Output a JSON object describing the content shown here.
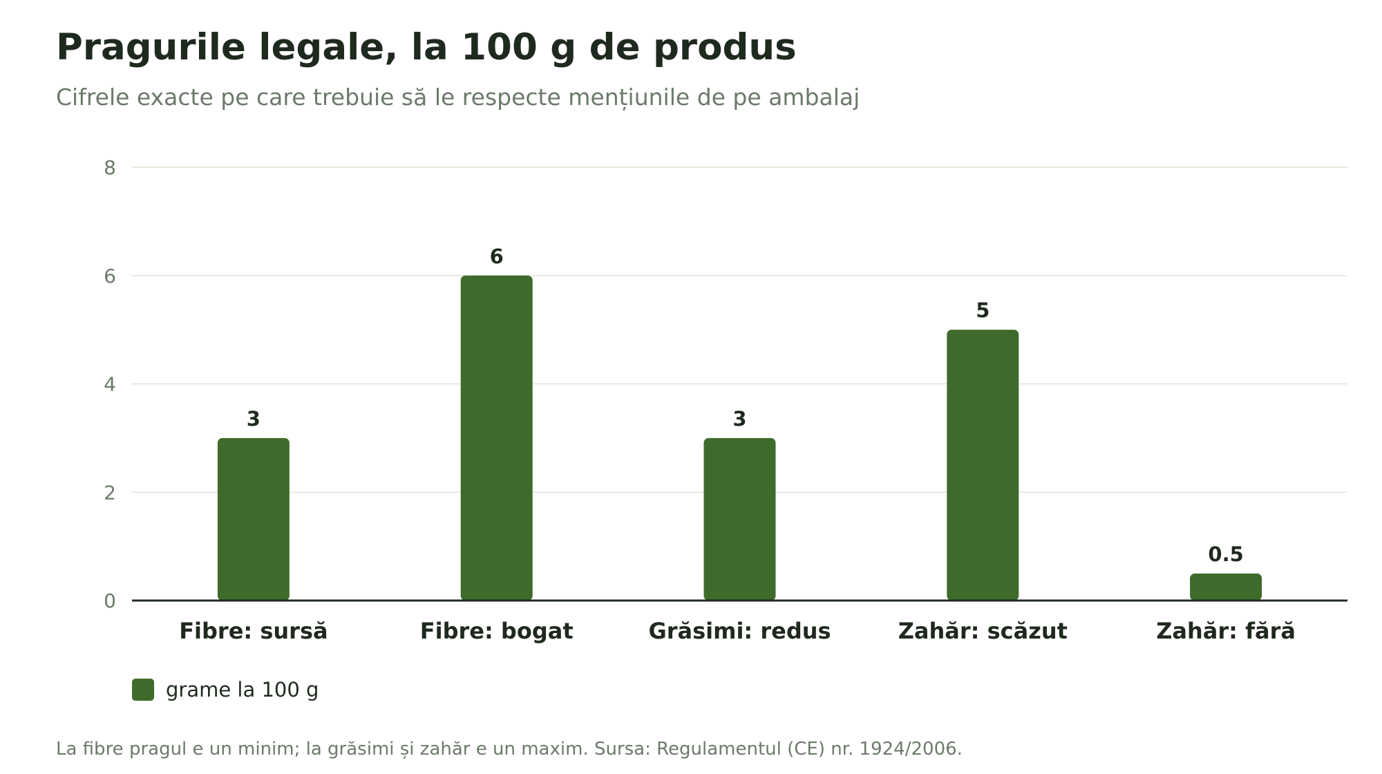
{
  "title": "Pragurile legale, la 100 g de produs",
  "subtitle": "Cifrele exacte pe care trebuie să le respecte mențiunile de pe ambalaj",
  "footnote": "La fibre pragul e un minim; la grăsimi și zahăr e un maxim. Sursa: Regulamentul (CE) nr. 1924/2006.",
  "colors": {
    "bar": "#3e6b2b",
    "grid": "#dfe3d4",
    "axis": "#1f2a1e",
    "tick_text": "#6b7a69",
    "label_text": "#1f2a1e"
  },
  "chart_data": {
    "type": "bar",
    "title": "Pragurile legale, la 100 g de produs",
    "subtitle": "Cifrele exacte pe care trebuie să le respecte mențiunile de pe ambalaj",
    "categories": [
      "Fibre: sursă",
      "Fibre: bogat",
      "Grăsimi: redus",
      "Zahăr: scăzut",
      "Zahăr: fără"
    ],
    "series": [
      {
        "name": "grame la 100 g",
        "values": [
          3,
          6,
          3,
          5,
          0.5
        ],
        "data_labels": [
          "3",
          "6",
          "3",
          "5",
          "0.5"
        ]
      }
    ],
    "xlabel": "",
    "ylabel": "",
    "ylim": [
      0,
      8
    ],
    "yticks": [
      "0",
      "2",
      "4",
      "6",
      "8"
    ],
    "grid": true,
    "legend_position": "bottom-left"
  }
}
